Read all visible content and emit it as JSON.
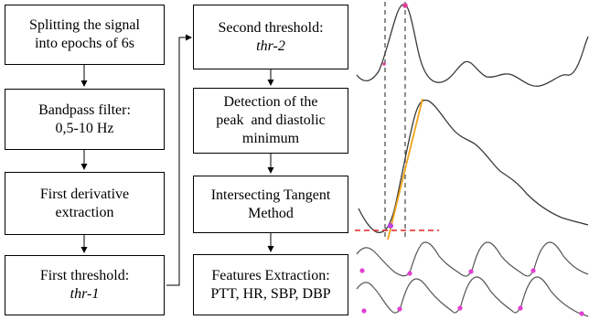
{
  "flowchart": {
    "left_column": [
      {
        "lines": [
          "Splitting the signal",
          "into epochs of 6s"
        ]
      },
      {
        "lines": [
          "Bandpass filter:",
          "0,5-10 Hz"
        ]
      },
      {
        "lines": [
          "First derivative",
          "extraction"
        ]
      },
      {
        "lines": [
          "First threshold:"
        ],
        "italic_line": "thr-1"
      }
    ],
    "right_column": [
      {
        "lines": [
          "Second threshold:"
        ],
        "italic_line": "thr-2"
      },
      {
        "lines": [
          "Detection of the",
          "peak  and diastolic",
          "minimum"
        ]
      },
      {
        "lines": [
          "Intersecting Tangent",
          "Method"
        ]
      },
      {
        "lines": [
          "Features Extraction:",
          "PTT, HR, SBP, DBP"
        ]
      }
    ]
  },
  "colors": {
    "signal": "#3a3a3a",
    "peak_marker": "#e0409a",
    "tangent": "#f2a31b",
    "baseline": "#e02424",
    "dashed_guides": "#444444"
  }
}
